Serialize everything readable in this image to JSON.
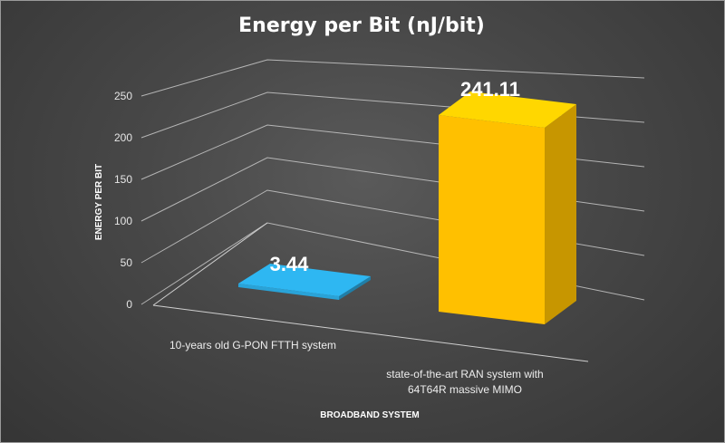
{
  "chart_data": {
    "type": "bar",
    "title": "Energy per Bit (nJ/bit)",
    "xlabel": "BROADBAND SYSTEM",
    "ylabel": "ENERGY PER BIT",
    "categories": [
      [
        "10-years old G-PON FTTH system"
      ],
      [
        "state-of-the-art RAN system with",
        "64T64R massive MIMO"
      ]
    ],
    "values": [
      3.44,
      241.11
    ],
    "data_labels": [
      "3.44",
      "241.11"
    ],
    "colors": [
      "#29a3d8",
      "#ffc000"
    ],
    "ylim": [
      0,
      250
    ],
    "yticks": [
      0,
      50,
      100,
      150,
      200,
      250
    ],
    "grid": true,
    "legend": "none",
    "style": "3d-column"
  }
}
